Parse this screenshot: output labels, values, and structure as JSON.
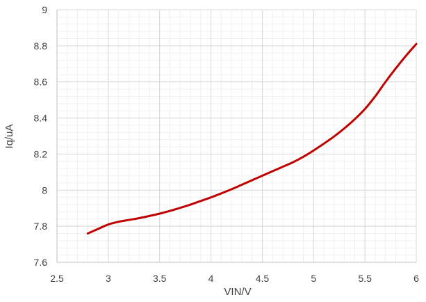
{
  "chart_data": {
    "type": "line",
    "title": "",
    "xlabel": "VIN/V",
    "ylabel": "Iq/uA",
    "xlim": [
      2.5,
      6
    ],
    "ylim": [
      7.6,
      9
    ],
    "xticks": [
      "2.5",
      "3",
      "3.5",
      "4",
      "4.5",
      "5",
      "5.5",
      "6"
    ],
    "yticks": [
      "7.6",
      "7.8",
      "8",
      "8.2",
      "8.4",
      "8.6",
      "8.8",
      "9"
    ],
    "grid": true,
    "legend": "none",
    "series": [
      {
        "color": "#C00000",
        "x": [
          2.8,
          2.9,
          3.0,
          3.1,
          3.2,
          3.3,
          3.4,
          3.5,
          3.6,
          3.7,
          3.8,
          3.9,
          4.0,
          4.1,
          4.2,
          4.3,
          4.4,
          4.5,
          4.6,
          4.7,
          4.8,
          4.9,
          5.0,
          5.1,
          5.2,
          5.3,
          5.4,
          5.5,
          5.6,
          5.7,
          5.8,
          5.9,
          6.0
        ],
        "y": [
          7.76,
          7.785,
          7.81,
          7.825,
          7.835,
          7.845,
          7.857,
          7.87,
          7.885,
          7.902,
          7.92,
          7.94,
          7.96,
          7.982,
          8.005,
          8.03,
          8.055,
          8.08,
          8.105,
          8.13,
          8.155,
          8.185,
          8.22,
          8.258,
          8.298,
          8.343,
          8.393,
          8.45,
          8.52,
          8.6,
          8.675,
          8.745,
          8.81
        ]
      }
    ]
  }
}
